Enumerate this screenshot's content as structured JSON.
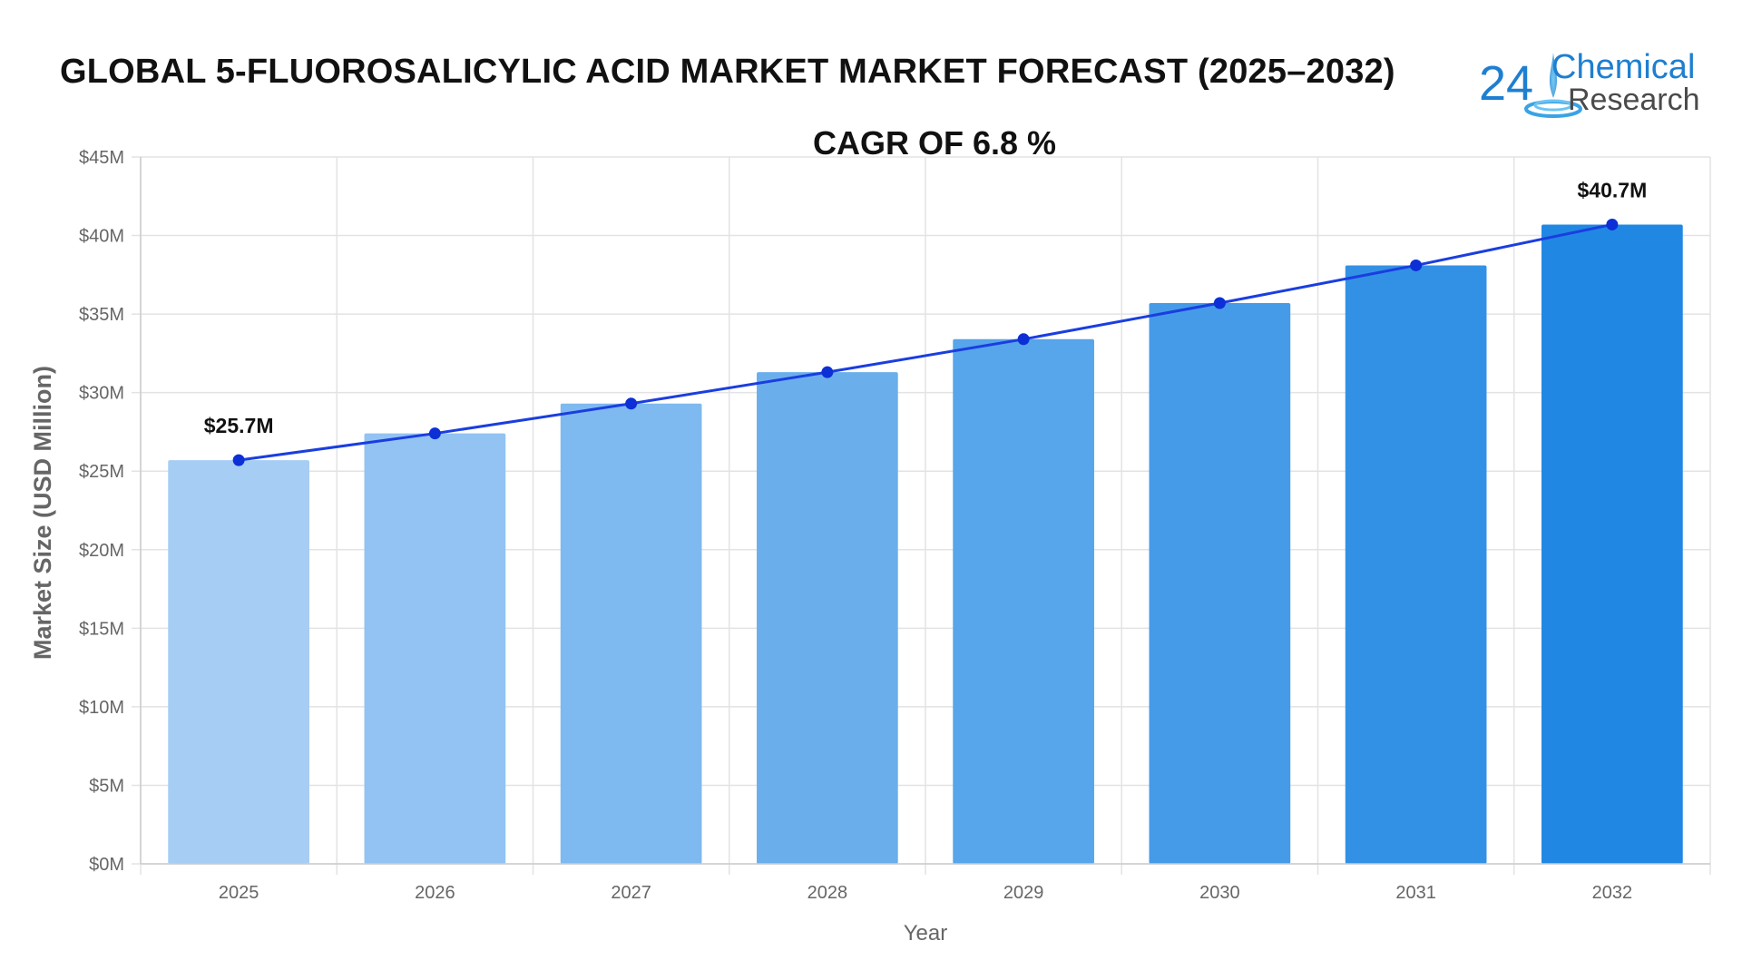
{
  "title": "GLOBAL 5-FLUOROSALICYLIC ACID MARKET MARKET FORECAST (2025–2032)",
  "subtitle": "CAGR OF 6.8 %",
  "logo": {
    "number": "24",
    "line1": "Chemical",
    "line2": "Research"
  },
  "colors": {
    "line": "#1a3ee0",
    "point": "#0c2fd6",
    "bars": [
      "#a6cdf4",
      "#92c3f2",
      "#7eb9ef",
      "#6aafec",
      "#57a5ea",
      "#459be8",
      "#3391e5",
      "#2088e3"
    ],
    "grid": "#e3e3e3",
    "axis_text": "#666666"
  },
  "chart_data": {
    "type": "bar",
    "categories": [
      "2025",
      "2026",
      "2027",
      "2028",
      "2029",
      "2030",
      "2031",
      "2032"
    ],
    "values": [
      25.7,
      27.4,
      29.3,
      31.3,
      33.4,
      35.7,
      38.1,
      40.7
    ],
    "overlay_line": true,
    "data_labels": [
      {
        "index": 0,
        "text": "$25.7M"
      },
      {
        "index": 7,
        "text": "$40.7M"
      }
    ],
    "xlabel": "Year",
    "ylabel": "Market Size (USD Million)",
    "ylim": [
      0,
      45
    ],
    "yticks": [
      0,
      5,
      10,
      15,
      20,
      25,
      30,
      35,
      40,
      45
    ],
    "ytick_labels": [
      "$0M",
      "$5M",
      "$10M",
      "$15M",
      "$20M",
      "$25M",
      "$30M",
      "$35M",
      "$40M",
      "$45M"
    ],
    "grid": true
  }
}
